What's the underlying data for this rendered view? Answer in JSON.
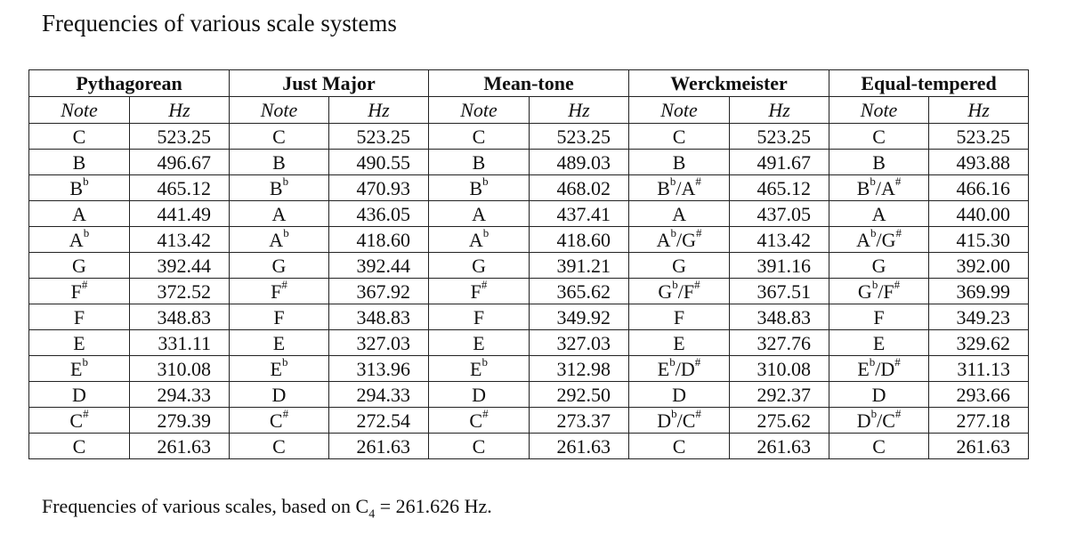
{
  "title": "Frequencies of various scale systems",
  "table": {
    "systems": [
      "Pythagorean",
      "Just Major",
      "Mean-tone",
      "Werckmeister",
      "Equal-tempered"
    ],
    "note_header": "Note",
    "hz_header": "Hz",
    "rows": [
      [
        [
          "C",
          "",
          ""
        ],
        "523.25",
        [
          "C",
          "",
          ""
        ],
        "523.25",
        [
          "C",
          "",
          ""
        ],
        "523.25",
        [
          "C",
          "",
          ""
        ],
        "523.25",
        [
          "C",
          "",
          ""
        ],
        "523.25"
      ],
      [
        [
          "B",
          "",
          ""
        ],
        "496.67",
        [
          "B",
          "",
          ""
        ],
        "490.55",
        [
          "B",
          "",
          ""
        ],
        "489.03",
        [
          "B",
          "",
          ""
        ],
        "491.67",
        [
          "B",
          "",
          ""
        ],
        "493.88"
      ],
      [
        [
          "B",
          "b",
          ""
        ],
        "465.12",
        [
          "B",
          "b",
          ""
        ],
        "470.93",
        [
          "B",
          "b",
          ""
        ],
        "468.02",
        [
          "B",
          "b",
          "/A#"
        ],
        "465.12",
        [
          "B",
          "b",
          "/A#"
        ],
        "466.16"
      ],
      [
        [
          "A",
          "",
          ""
        ],
        "441.49",
        [
          "A",
          "",
          ""
        ],
        "436.05",
        [
          "A",
          "",
          ""
        ],
        "437.41",
        [
          "A",
          "",
          ""
        ],
        "437.05",
        [
          "A",
          "",
          ""
        ],
        "440.00"
      ],
      [
        [
          "A",
          "b",
          ""
        ],
        "413.42",
        [
          "A",
          "b",
          ""
        ],
        "418.60",
        [
          "A",
          "b",
          ""
        ],
        "418.60",
        [
          "A",
          "b",
          "/G#"
        ],
        "413.42",
        [
          "A",
          "b",
          "/G#"
        ],
        "415.30"
      ],
      [
        [
          "G",
          "",
          ""
        ],
        "392.44",
        [
          "G",
          "",
          ""
        ],
        "392.44",
        [
          "G",
          "",
          ""
        ],
        "391.21",
        [
          "G",
          "",
          ""
        ],
        "391.16",
        [
          "G",
          "",
          ""
        ],
        "392.00"
      ],
      [
        [
          "F",
          "#",
          ""
        ],
        "372.52",
        [
          "F",
          "#",
          ""
        ],
        "367.92",
        [
          "F",
          "#",
          ""
        ],
        "365.62",
        [
          "G",
          "b",
          "/F#"
        ],
        "367.51",
        [
          "G",
          "b",
          "/F#"
        ],
        "369.99"
      ],
      [
        [
          "F",
          "",
          ""
        ],
        "348.83",
        [
          "F",
          "",
          ""
        ],
        "348.83",
        [
          "F",
          "",
          ""
        ],
        "349.92",
        [
          "F",
          "",
          ""
        ],
        "348.83",
        [
          "F",
          "",
          ""
        ],
        "349.23"
      ],
      [
        [
          "E",
          "",
          ""
        ],
        "331.11",
        [
          "E",
          "",
          ""
        ],
        "327.03",
        [
          "E",
          "",
          ""
        ],
        "327.03",
        [
          "E",
          "",
          ""
        ],
        "327.76",
        [
          "E",
          "",
          ""
        ],
        "329.62"
      ],
      [
        [
          "E",
          "b",
          ""
        ],
        "310.08",
        [
          "E",
          "b",
          ""
        ],
        "313.96",
        [
          "E",
          "b",
          ""
        ],
        "312.98",
        [
          "E",
          "b",
          "/D#"
        ],
        "310.08",
        [
          "E",
          "b",
          "/D#"
        ],
        "311.13"
      ],
      [
        [
          "D",
          "",
          ""
        ],
        "294.33",
        [
          "D",
          "",
          ""
        ],
        "294.33",
        [
          "D",
          "",
          ""
        ],
        "292.50",
        [
          "D",
          "",
          ""
        ],
        "292.37",
        [
          "D",
          "",
          ""
        ],
        "293.66"
      ],
      [
        [
          "C",
          "#",
          ""
        ],
        "279.39",
        [
          "C",
          "#",
          ""
        ],
        "272.54",
        [
          "C",
          "#",
          ""
        ],
        "273.37",
        [
          "D",
          "b",
          "/C#"
        ],
        "275.62",
        [
          "D",
          "b",
          "/C#"
        ],
        "277.18"
      ],
      [
        [
          "C",
          "",
          ""
        ],
        "261.63",
        [
          "C",
          "",
          ""
        ],
        "261.63",
        [
          "C",
          "",
          ""
        ],
        "261.63",
        [
          "C",
          "",
          ""
        ],
        "261.63",
        [
          "C",
          "",
          ""
        ],
        "261.63"
      ]
    ]
  },
  "caption": {
    "prefix": "Frequencies of various scales, based on C",
    "subscript": "4",
    "suffix": " = 261.626 Hz."
  }
}
